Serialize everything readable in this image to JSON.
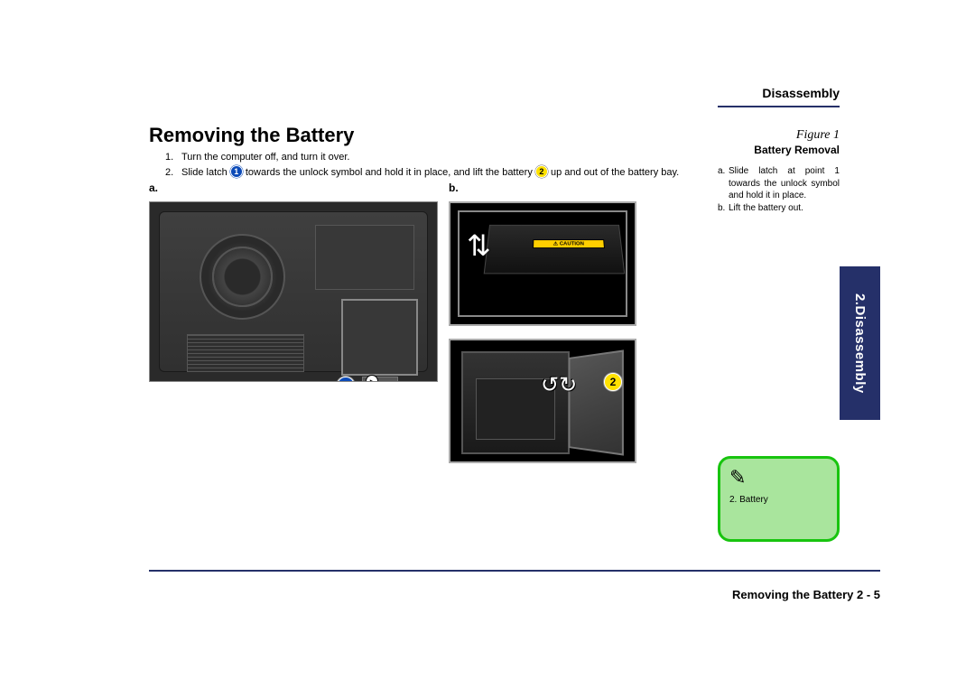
{
  "colors": {
    "accent": "#253069",
    "callout_blue": "#0b4ab8",
    "callout_yellow": "#ffe100",
    "note_bg": "#a9e59d",
    "note_border": "#18c40f",
    "text": "#000000",
    "page_bg": "#ffffff"
  },
  "typography": {
    "body_family": "Arial, Helvetica, sans-serif",
    "title_size_pt": 16,
    "body_size_pt": 8.5,
    "figure_label_family": "Times New Roman, serif"
  },
  "header": {
    "section": "Disassembly"
  },
  "title": "Removing the Battery",
  "steps": [
    {
      "n": "1.",
      "pre": "Turn the computer off, and turn it over.",
      "c1": "",
      "mid": "",
      "c2": "",
      "post": ""
    },
    {
      "n": "2.",
      "pre": "Slide latch ",
      "c1": "1",
      "mid": " towards the unlock symbol and hold it in place, and lift the battery ",
      "c2": "2",
      "post": " up and out of the battery bay."
    }
  ],
  "figures": {
    "label_a": "a.",
    "label_b": "b.",
    "caution_strip": "⚠ CAUTION",
    "callout_a": "1",
    "callout_b2": "2"
  },
  "sidebar": {
    "figure_label": "Figure 1",
    "figure_title": "Battery Removal",
    "notes": [
      {
        "k": "a.",
        "t": "Slide latch at point 1 towards the unlock symbol and hold it in place."
      },
      {
        "k": "b.",
        "t": "Lift the  battery out."
      }
    ]
  },
  "side_tab": "2.Disassembly",
  "note_box": {
    "icon": "✎",
    "line": "2. Battery"
  },
  "footer": "Removing the Battery  2  -  5"
}
